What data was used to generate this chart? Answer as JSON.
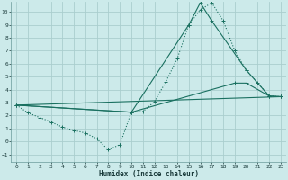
{
  "xlabel": "Humidex (Indice chaleur)",
  "background_color": "#cceaea",
  "grid_color": "#aacece",
  "line_color": "#1a7060",
  "xlim": [
    -0.5,
    23.5
  ],
  "ylim": [
    -1.6,
    10.8
  ],
  "xticks": [
    0,
    1,
    2,
    3,
    4,
    5,
    6,
    7,
    8,
    9,
    10,
    11,
    12,
    13,
    14,
    15,
    16,
    17,
    18,
    19,
    20,
    21,
    22,
    23
  ],
  "yticks": [
    -1,
    0,
    1,
    2,
    3,
    4,
    5,
    6,
    7,
    8,
    9,
    10
  ],
  "series1_x": [
    0,
    1,
    2,
    3,
    4,
    5,
    6,
    7,
    8,
    9,
    10,
    11,
    12,
    13,
    14,
    15,
    16,
    17,
    18,
    19,
    20,
    21,
    22,
    23
  ],
  "series1_y": [
    2.8,
    2.2,
    1.85,
    1.5,
    1.1,
    0.85,
    0.65,
    0.2,
    -0.65,
    -0.25,
    2.25,
    2.3,
    3.05,
    4.6,
    6.4,
    9.0,
    10.15,
    10.7,
    9.3,
    7.0,
    5.5,
    4.5,
    3.5,
    3.45
  ],
  "series2_x": [
    0,
    10,
    15,
    16,
    17,
    20,
    22,
    23
  ],
  "series2_y": [
    2.8,
    2.25,
    9.0,
    10.7,
    9.3,
    5.5,
    3.5,
    3.45
  ],
  "series3_x": [
    0,
    23
  ],
  "series3_y": [
    2.8,
    3.45
  ],
  "series4_x": [
    0,
    10,
    19,
    20,
    22,
    23
  ],
  "series4_y": [
    2.8,
    2.25,
    4.5,
    4.5,
    3.5,
    3.45
  ]
}
